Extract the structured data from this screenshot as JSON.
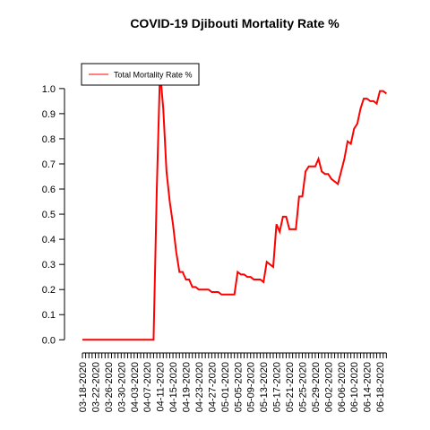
{
  "chart_data": {
    "type": "line",
    "title": "COVID-19 Djibouti Mortality Rate %",
    "categories": [
      "03-18-2020",
      null,
      null,
      null,
      "03-22-2020",
      null,
      null,
      null,
      "03-26-2020",
      null,
      null,
      null,
      "03-30-2020",
      null,
      null,
      null,
      "04-03-2020",
      null,
      null,
      null,
      "04-07-2020",
      null,
      null,
      null,
      "04-11-2020",
      null,
      null,
      null,
      "04-15-2020",
      null,
      null,
      null,
      "04-19-2020",
      null,
      null,
      null,
      "04-23-2020",
      null,
      null,
      null,
      "04-27-2020",
      null,
      null,
      null,
      "05-01-2020",
      null,
      null,
      null,
      "05-05-2020",
      null,
      null,
      null,
      "05-09-2020",
      null,
      null,
      null,
      "05-13-2020",
      null,
      null,
      null,
      "05-17-2020",
      null,
      null,
      null,
      "05-21-2020",
      null,
      null,
      null,
      "05-25-2020",
      null,
      null,
      null,
      "05-29-2020",
      null,
      null,
      null,
      "06-02-2020",
      null,
      null,
      null,
      "06-06-2020",
      null,
      null,
      null,
      "06-10-2020",
      null,
      null,
      null,
      "06-14-2020",
      null,
      null,
      null,
      "06-18-2020",
      null,
      null
    ],
    "series": [
      {
        "name": "Total Mortality Rate %",
        "color": "#ff0000",
        "values": [
          0,
          0,
          0,
          0,
          0,
          0,
          0,
          0,
          0,
          0,
          0,
          0,
          0,
          0,
          0,
          0,
          0,
          0,
          0,
          0,
          0,
          0,
          0,
          0.6,
          1.07,
          0.92,
          0.67,
          0.55,
          0.46,
          0.35,
          0.27,
          0.27,
          0.24,
          0.24,
          0.21,
          0.21,
          0.2,
          0.2,
          0.2,
          0.2,
          0.19,
          0.19,
          0.19,
          0.18,
          0.18,
          0.18,
          0.18,
          0.18,
          0.27,
          0.26,
          0.26,
          0.25,
          0.25,
          0.24,
          0.24,
          0.24,
          0.23,
          0.31,
          0.3,
          0.29,
          0.46,
          0.43,
          0.49,
          0.49,
          0.44,
          0.44,
          0.44,
          0.57,
          0.57,
          0.67,
          0.69,
          0.69,
          0.69,
          0.72,
          0.67,
          0.66,
          0.66,
          0.64,
          0.63,
          0.62,
          0.67,
          0.72,
          0.79,
          0.78,
          0.84,
          0.86,
          0.92,
          0.96,
          0.96,
          0.95,
          0.95,
          0.94,
          0.99,
          0.99,
          0.98
        ]
      }
    ],
    "ylim": [
      -0.04,
      1.11
    ],
    "yticks": [
      {
        "value": 0,
        "label": "0.0"
      },
      0.1,
      0.2,
      0.3,
      0.4,
      0.5,
      0.6,
      0.7,
      0.8,
      0.9,
      {
        "value": 1,
        "label": "1.0"
      }
    ],
    "legend": "top-left"
  }
}
